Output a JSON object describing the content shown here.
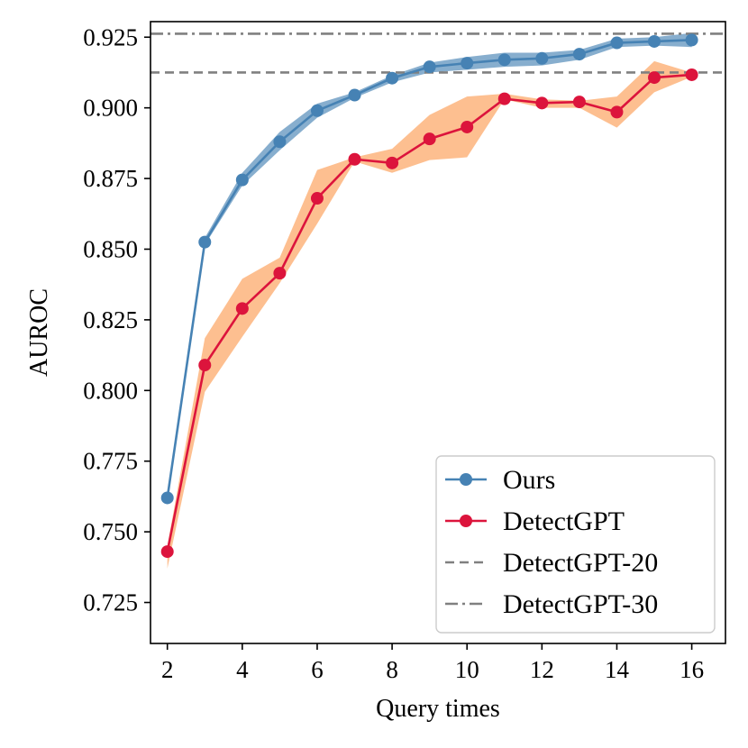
{
  "chart_data": {
    "type": "line",
    "title": "",
    "xlabel": "Query times",
    "ylabel": "AUROC",
    "xlim": [
      1.55,
      16.9
    ],
    "ylim": [
      0.7105,
      0.9305
    ],
    "xticks": [
      2,
      4,
      6,
      8,
      10,
      12,
      14,
      16
    ],
    "xtick_labels": [
      "2",
      "4",
      "6",
      "8",
      "10",
      "12",
      "14",
      "16"
    ],
    "yticks": [
      0.725,
      0.75,
      0.775,
      0.8,
      0.825,
      0.85,
      0.875,
      0.9,
      0.925
    ],
    "ytick_labels": [
      "0.725",
      "0.750",
      "0.775",
      "0.800",
      "0.825",
      "0.850",
      "0.875",
      "0.900",
      "0.925"
    ],
    "grid": false,
    "legend_position": "bottom-right",
    "x": [
      2,
      3,
      4,
      5,
      6,
      7,
      8,
      9,
      10,
      11,
      12,
      13,
      14,
      15,
      16
    ],
    "series": [
      {
        "name": "Ours",
        "color": "#4682b4",
        "band_color": "#4682b4",
        "marker": "circle",
        "values": [
          0.762,
          0.8525,
          0.8745,
          0.888,
          0.899,
          0.9045,
          0.9105,
          0.9145,
          0.9158,
          0.917,
          0.9175,
          0.919,
          0.923,
          0.9235,
          0.924
        ],
        "lower": [
          0.761,
          0.8515,
          0.8725,
          0.885,
          0.8965,
          0.9035,
          0.909,
          0.9125,
          0.9135,
          0.9145,
          0.915,
          0.917,
          0.9215,
          0.922,
          0.9215
        ],
        "upper": [
          0.763,
          0.854,
          0.877,
          0.8915,
          0.9015,
          0.9055,
          0.9115,
          0.916,
          0.918,
          0.9195,
          0.9195,
          0.9205,
          0.9245,
          0.925,
          0.9265
        ]
      },
      {
        "name": "DetectGPT",
        "color": "#dc143c",
        "band_color": "#fdb47d",
        "marker": "circle",
        "values": [
          0.743,
          0.809,
          0.829,
          0.8415,
          0.868,
          0.8818,
          0.8805,
          0.889,
          0.8932,
          0.9032,
          0.9017,
          0.9021,
          0.8985,
          0.9107,
          0.9117
        ],
        "lower": [
          0.737,
          0.7995,
          0.819,
          0.838,
          0.859,
          0.881,
          0.877,
          0.8815,
          0.8825,
          0.903,
          0.9,
          0.9,
          0.893,
          0.9055,
          0.911
        ],
        "upper": [
          0.745,
          0.8185,
          0.8395,
          0.847,
          0.878,
          0.8825,
          0.8855,
          0.8975,
          0.904,
          0.905,
          0.903,
          0.9025,
          0.904,
          0.9165,
          0.9125
        ]
      }
    ],
    "reference_lines": [
      {
        "name": "DetectGPT-20",
        "y": 0.9125,
        "color": "#808080",
        "style": "dashed"
      },
      {
        "name": "DetectGPT-30",
        "y": 0.9262,
        "color": "#808080",
        "style": "dashdot"
      }
    ]
  }
}
